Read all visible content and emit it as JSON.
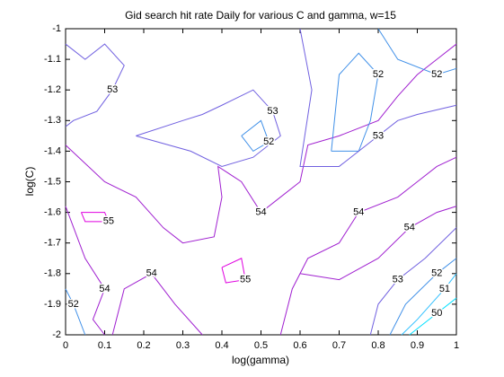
{
  "chart_data": {
    "type": "contour",
    "title": "Gid search hit rate Daily for various C and gamma, w=15",
    "x_label": "log(gamma)",
    "y_label": "log(C)",
    "xlim": [
      0,
      1
    ],
    "xticks": [
      0,
      0.1,
      0.2,
      0.3,
      0.4,
      0.5,
      0.6,
      0.7,
      0.8,
      0.9,
      1
    ],
    "ylim": [
      -2,
      -1
    ],
    "yticks": [
      -2,
      -1.9,
      -1.8,
      -1.7,
      -1.6,
      -1.5,
      -1.4,
      -1.3,
      -1.2,
      -1.1,
      -1
    ],
    "levels": [
      50,
      51,
      52,
      53,
      54,
      55
    ],
    "colors": [
      "#00e0ff",
      "#30c0ff",
      "#4090e8",
      "#7060e0",
      "#a020d0",
      "#e000e0"
    ],
    "contours": [
      {
        "level": 53,
        "x": [
          0,
          0.05,
          0.1,
          0.15,
          0.12,
          0.08,
          0.02,
          0
        ],
        "y": [
          -1.05,
          -1.1,
          -1.05,
          -1.12,
          -1.2,
          -1.27,
          -1.3,
          -1.32
        ]
      },
      {
        "level": 54,
        "x": [
          0,
          0.1,
          0.18,
          0.25,
          0.3,
          0.38,
          0.4,
          0.39,
          0.45,
          0.5,
          0.55,
          0.6,
          0.62,
          0.7,
          0.8,
          0.85,
          0.9,
          0.95,
          1
        ],
        "y": [
          -1.38,
          -1.5,
          -1.55,
          -1.65,
          -1.7,
          -1.68,
          -1.55,
          -1.45,
          -1.5,
          -1.6,
          -1.55,
          -1.5,
          -1.38,
          -1.35,
          -1.3,
          -1.22,
          -1.15,
          -1.1,
          -1.05
        ]
      },
      {
        "level": 53,
        "x": [
          0.18,
          0.3,
          0.35,
          0.4,
          0.48,
          0.53,
          0.55,
          0.48,
          0.4,
          0.32,
          0.18
        ],
        "y": [
          -1.35,
          -1.3,
          -1.28,
          -1.25,
          -1.2,
          -1.27,
          -1.35,
          -1.42,
          -1.45,
          -1.4,
          -1.35
        ]
      },
      {
        "level": 52,
        "x": [
          0.45,
          0.5,
          0.52,
          0.48,
          0.45
        ],
        "y": [
          -1.35,
          -1.3,
          -1.37,
          -1.4,
          -1.35
        ]
      },
      {
        "level": 52,
        "x": [
          0.68,
          0.7,
          0.75,
          0.8,
          0.78,
          0.75,
          0.68
        ],
        "y": [
          -1.4,
          -1.15,
          -1.08,
          -1.15,
          -1.3,
          -1.4,
          -1.4
        ]
      },
      {
        "level": 53,
        "x": [
          0.6,
          0.63,
          0.6,
          0.7,
          0.8,
          0.85,
          0.9,
          1
        ],
        "y": [
          -1,
          -1.2,
          -1.45,
          -1.45,
          -1.35,
          -1.3,
          -1.28,
          -1.25
        ]
      },
      {
        "level": 52,
        "x": [
          0.8,
          0.85,
          0.95,
          1
        ],
        "y": [
          -1,
          -1.1,
          -1.15,
          -1.13
        ]
      },
      {
        "level": 55,
        "x": [
          0.04,
          0.1,
          0.11,
          0.05,
          0.04
        ],
        "y": [
          -1.6,
          -1.6,
          -1.63,
          -1.63,
          -1.6
        ]
      },
      {
        "level": 54,
        "x": [
          0.55,
          0.58,
          0.62,
          0.7,
          0.75,
          0.85,
          0.9,
          0.95,
          1
        ],
        "y": [
          -2,
          -1.85,
          -1.75,
          -1.7,
          -1.6,
          -1.55,
          -1.5,
          -1.45,
          -1.42
        ]
      },
      {
        "level": 54,
        "x": [
          0.6,
          0.7,
          0.8,
          0.88,
          0.95,
          1
        ],
        "y": [
          -1.8,
          -1.82,
          -1.75,
          -1.65,
          -1.6,
          -1.58
        ]
      },
      {
        "level": 53,
        "x": [
          0.78,
          0.8,
          0.85,
          0.92,
          1
        ],
        "y": [
          -2,
          -1.9,
          -1.82,
          -1.75,
          -1.65
        ]
      },
      {
        "level": 52,
        "x": [
          0.83,
          0.87,
          0.95,
          1
        ],
        "y": [
          -2,
          -1.9,
          -1.8,
          -1.75
        ]
      },
      {
        "level": 51,
        "x": [
          0.86,
          0.9,
          0.97,
          1
        ],
        "y": [
          -2,
          -1.95,
          -1.85,
          -1.8
        ]
      },
      {
        "level": 50,
        "x": [
          0.88,
          0.95,
          1
        ],
        "y": [
          -2,
          -1.93,
          -1.88
        ]
      },
      {
        "level": 54,
        "x": [
          0.12,
          0.15,
          0.22,
          0.28,
          0.35
        ],
        "y": [
          -2,
          -1.85,
          -1.8,
          -1.9,
          -2
        ]
      },
      {
        "level": 55,
        "x": [
          0.4,
          0.45,
          0.46,
          0.41,
          0.4
        ],
        "y": [
          -1.78,
          -1.75,
          -1.82,
          -1.83,
          -1.78
        ]
      },
      {
        "level": 52,
        "x": [
          0,
          0.02,
          0.05
        ],
        "y": [
          -1.85,
          -1.9,
          -2
        ]
      },
      {
        "level": 54,
        "x": [
          0,
          0.05,
          0.1,
          0.07,
          0.1
        ],
        "y": [
          -1.58,
          -1.75,
          -1.85,
          -1.95,
          -2
        ]
      }
    ]
  }
}
